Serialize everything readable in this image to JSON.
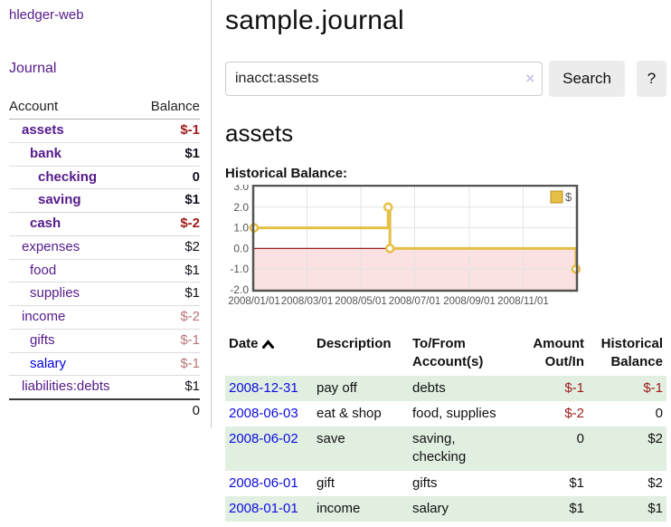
{
  "colors": {
    "link_purple": "#551a8b",
    "link_blue": "#0000e6",
    "negative_strong": "#a11c1c",
    "negative_soft": "#b97575",
    "row_stripe_green": "#e1efe1",
    "chart_line_gold": "#e6bf45",
    "chart_negative_fill": "#fbe1e1",
    "chart_zero_line": "#9c1b1b",
    "chart_border": "#545454"
  },
  "sidebar": {
    "app_title": "hledger-web",
    "journal_link": "Journal",
    "accounts_header": {
      "account": "Account",
      "balance": "Balance"
    },
    "accounts": [
      {
        "name": "assets",
        "level": 0,
        "balance": "$-1",
        "bold": true,
        "balance_color": "neg"
      },
      {
        "name": "bank",
        "level": 1,
        "balance": "$1",
        "bold": true,
        "balance_color": "pos"
      },
      {
        "name": "checking",
        "level": 2,
        "balance": "0",
        "bold": true,
        "balance_color": "pos"
      },
      {
        "name": "saving",
        "level": 2,
        "balance": "$1",
        "bold": true,
        "balance_color": "pos"
      },
      {
        "name": "cash",
        "level": 1,
        "balance": "$-2",
        "bold": true,
        "balance_color": "neg"
      },
      {
        "name": "expenses",
        "level": 0,
        "balance": "$2",
        "bold": false,
        "balance_color": "pos"
      },
      {
        "name": "food",
        "level": 1,
        "balance": "$1",
        "bold": false,
        "balance_color": "pos"
      },
      {
        "name": "supplies",
        "level": 1,
        "balance": "$1",
        "bold": false,
        "balance_color": "pos"
      },
      {
        "name": "income",
        "level": 0,
        "balance": "$-2",
        "bold": false,
        "balance_color": "neg-soft"
      },
      {
        "name": "gifts",
        "level": 1,
        "balance": "$-1",
        "bold": false,
        "balance_color": "neg-soft"
      },
      {
        "name": "salary",
        "level": 1,
        "balance": "$-1",
        "bold": false,
        "balance_color": "neg-soft",
        "link_color": "blue"
      },
      {
        "name": "liabilities:debts",
        "level": 0,
        "balance": "$1",
        "bold": false,
        "balance_color": "pos"
      }
    ],
    "total": "0"
  },
  "main": {
    "title": "sample.journal",
    "search": {
      "value": "inacct:assets",
      "clear_icon": "×",
      "button_label": "Search",
      "help_label": "?"
    },
    "account_heading": "assets",
    "chart_label": "Historical Balance:"
  },
  "chart_data": {
    "type": "line",
    "step": true,
    "title": "Historical Balance",
    "xlabel": "",
    "ylabel": "",
    "ylim": [
      -2,
      3
    ],
    "x_range_days": [
      0,
      365
    ],
    "grid": true,
    "legend": {
      "label": "$",
      "position": "top-right"
    },
    "y_ticks": [
      "3.0",
      "2.0",
      "1.0",
      "0.0",
      "-1.0",
      "-2.0"
    ],
    "y_tick_values": [
      3,
      2,
      1,
      0,
      -1,
      -2
    ],
    "x_ticks": [
      {
        "day": 0,
        "label": "2008/01/01"
      },
      {
        "day": 60,
        "label": "2008/03/01"
      },
      {
        "day": 121,
        "label": "2008/05/01"
      },
      {
        "day": 182,
        "label": "2008/07/01"
      },
      {
        "day": 244,
        "label": "2008/09/01"
      },
      {
        "day": 305,
        "label": "2008/11/01"
      }
    ],
    "series": [
      {
        "name": "$",
        "color": "#e6bf45",
        "points": [
          {
            "date": "2008-01-01",
            "day": 0,
            "value": 1
          },
          {
            "date": "2008-06-01",
            "day": 152,
            "value": 2
          },
          {
            "date": "2008-06-03",
            "day": 154,
            "value": 0
          },
          {
            "date": "2008-12-31",
            "day": 365,
            "value": -1
          }
        ]
      }
    ]
  },
  "register": {
    "headers": [
      "Date",
      "Description",
      "To/From Account(s)",
      "Amount Out/In",
      "Historical Balance"
    ],
    "rows": [
      {
        "date": "2008-12-31",
        "description": "pay off",
        "accounts": "debts",
        "amount": "$-1",
        "amount_neg": true,
        "balance": "$-1",
        "balance_neg": true
      },
      {
        "date": "2008-06-03",
        "description": "eat & shop",
        "accounts": "food, supplies",
        "amount": "$-2",
        "amount_neg": true,
        "balance": "0",
        "balance_neg": false
      },
      {
        "date": "2008-06-02",
        "description": "save",
        "accounts": "saving, checking",
        "amount": "0",
        "amount_neg": false,
        "balance": "$2",
        "balance_neg": false
      },
      {
        "date": "2008-06-01",
        "description": "gift",
        "accounts": "gifts",
        "amount": "$1",
        "amount_neg": false,
        "balance": "$2",
        "balance_neg": false
      },
      {
        "date": "2008-01-01",
        "description": "income",
        "accounts": "salary",
        "amount": "$1",
        "amount_neg": false,
        "balance": "$1",
        "balance_neg": false
      }
    ]
  }
}
